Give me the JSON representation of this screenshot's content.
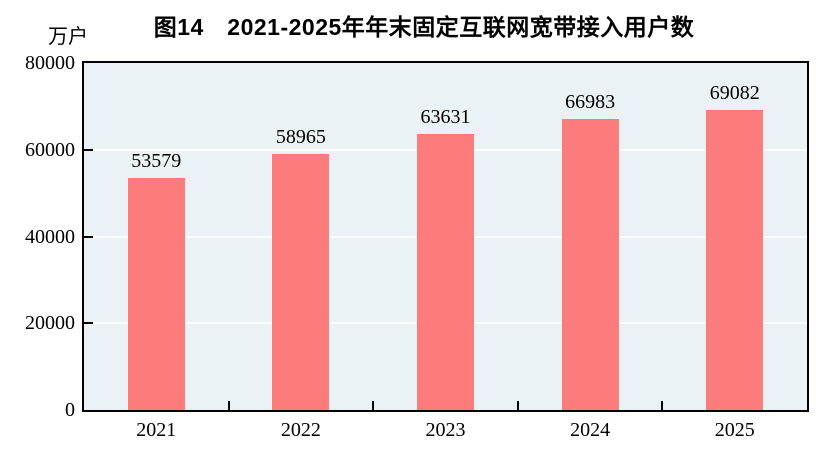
{
  "chart_data": {
    "type": "bar",
    "title": "图14　2021-2025年年末固定互联网宽带接入用户数",
    "unit_label": "万户",
    "categories": [
      "2021",
      "2022",
      "2023",
      "2024",
      "2025"
    ],
    "values": [
      53579,
      58965,
      63631,
      66983,
      69082
    ],
    "ylim": [
      0,
      80000
    ],
    "yticks": [
      0,
      20000,
      40000,
      60000,
      80000
    ],
    "grid": "horizontal",
    "legend_position": "none",
    "colors": {
      "bar": "#FC7B7B",
      "plot_background": "#EBF2F5",
      "gridline": "#FFFFFF",
      "axis": "#000000",
      "text": "#000000"
    }
  }
}
